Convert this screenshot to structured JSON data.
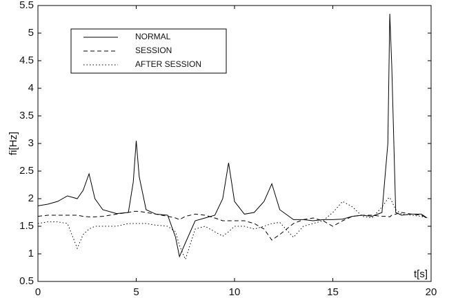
{
  "chart_data": {
    "type": "line",
    "ylabel": "fi[Hz]",
    "xlabel": "t[s]",
    "x": [
      0,
      0.5,
      1,
      1.5,
      2,
      2.3,
      2.6,
      2.9,
      3.3,
      4,
      4.6,
      4.85,
      5,
      5.15,
      5.5,
      6,
      6.6,
      7,
      7.2,
      7.5,
      8,
      8.5,
      9,
      9.4,
      9.7,
      10,
      10.5,
      11,
      11.5,
      11.9,
      12.3,
      13,
      13.5,
      14,
      14.5,
      15,
      15.5,
      16,
      16.5,
      17,
      17.5,
      17.8,
      17.9,
      18,
      18.2,
      18.5,
      19,
      19.5,
      19.8
    ],
    "series": [
      {
        "name": "NORMAL",
        "color": "#000000",
        "style": "solid",
        "values": [
          1.87,
          1.9,
          1.95,
          2.05,
          2.0,
          2.15,
          2.45,
          2.0,
          1.8,
          1.73,
          1.75,
          2.3,
          3.05,
          2.4,
          1.8,
          1.72,
          1.7,
          1.3,
          0.95,
          1.2,
          1.6,
          1.65,
          1.7,
          2.0,
          2.65,
          1.95,
          1.72,
          1.75,
          1.95,
          2.27,
          1.8,
          1.62,
          1.62,
          1.6,
          1.62,
          1.62,
          1.63,
          1.68,
          1.7,
          1.68,
          1.75,
          3.0,
          5.35,
          4.4,
          1.75,
          1.7,
          1.72,
          1.72,
          1.65
        ]
      },
      {
        "name": "SESSION",
        "color": "#000000",
        "style": "dashed",
        "values": [
          1.68,
          1.7,
          1.7,
          1.7,
          1.7,
          1.68,
          1.67,
          1.67,
          1.68,
          1.72,
          1.75,
          1.77,
          1.77,
          1.77,
          1.75,
          1.72,
          1.68,
          1.65,
          1.62,
          1.68,
          1.72,
          1.7,
          1.65,
          1.6,
          1.6,
          1.6,
          1.6,
          1.55,
          1.45,
          1.25,
          1.35,
          1.55,
          1.62,
          1.65,
          1.6,
          1.5,
          1.6,
          1.68,
          1.7,
          1.7,
          1.68,
          1.68,
          1.67,
          1.7,
          1.72,
          1.75,
          1.72,
          1.7,
          1.65
        ]
      },
      {
        "name": "AFTER SESSION",
        "color": "#000000",
        "style": "dotted",
        "values": [
          1.55,
          1.58,
          1.58,
          1.55,
          1.1,
          1.35,
          1.45,
          1.5,
          1.5,
          1.5,
          1.55,
          1.55,
          1.55,
          1.55,
          1.55,
          1.52,
          1.5,
          1.4,
          1.15,
          0.9,
          1.45,
          1.5,
          1.4,
          1.32,
          1.4,
          1.5,
          1.5,
          1.45,
          1.5,
          1.55,
          1.57,
          1.3,
          1.5,
          1.55,
          1.6,
          1.75,
          1.95,
          1.85,
          1.68,
          1.65,
          1.85,
          2.0,
          2.02,
          1.95,
          1.8,
          1.72,
          1.7,
          1.68,
          1.65
        ]
      }
    ],
    "xlim": [
      0,
      20
    ],
    "xticks": [
      0,
      5,
      10,
      15,
      20
    ],
    "ylim": [
      0.5,
      5.5
    ],
    "yticks": [
      0.5,
      1,
      1.5,
      2,
      2.5,
      3,
      3.5,
      4,
      4.5,
      5,
      5.5
    ],
    "grid": false,
    "legend": "upper left"
  }
}
